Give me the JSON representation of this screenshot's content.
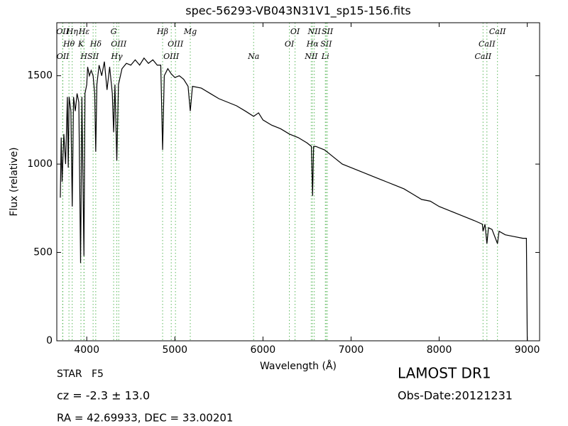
{
  "chart_data": {
    "type": "line",
    "title": "spec-56293-VB043N31V1_sp15-156.fits",
    "x_label": "Wavelength (Å)",
    "y_label": "Flux (relative)",
    "color": "#000000",
    "line_color": "#5cb85c",
    "xlim": [
      3660,
      9140
    ],
    "ylim": [
      0,
      1800
    ],
    "xticks": [
      4000,
      5000,
      6000,
      7000,
      8000,
      9000
    ],
    "yticks": [
      0,
      500,
      1000,
      1500
    ],
    "x": [
      3700,
      3710,
      3720,
      3740,
      3760,
      3780,
      3790,
      3800,
      3820,
      3835,
      3850,
      3870,
      3890,
      3910,
      3930,
      3945,
      3968,
      3980,
      4000,
      4010,
      4030,
      4050,
      4072,
      4090,
      4102,
      4115,
      4140,
      4170,
      4200,
      4230,
      4260,
      4290,
      4305,
      4320,
      4341,
      4360,
      4400,
      4450,
      4500,
      4550,
      4600,
      4650,
      4700,
      4750,
      4800,
      4840,
      4861,
      4880,
      4920,
      4960,
      5000,
      5050,
      5100,
      5150,
      5175,
      5200,
      5300,
      5400,
      5500,
      5600,
      5700,
      5800,
      5894,
      5950,
      6000,
      6100,
      6200,
      6300,
      6400,
      6500,
      6550,
      6563,
      6575,
      6600,
      6700,
      6800,
      6900,
      7000,
      7100,
      7200,
      7300,
      7400,
      7500,
      7600,
      7700,
      7800,
      7900,
      8000,
      8100,
      8200,
      8300,
      8400,
      8490,
      8498,
      8520,
      8542,
      8560,
      8600,
      8662,
      8680,
      8750,
      8850,
      8950,
      8990,
      9000
    ],
    "values": [
      810,
      1150,
      900,
      1170,
      1000,
      1380,
      980,
      1380,
      1300,
      760,
      1380,
      1300,
      1400,
      1350,
      440,
      1380,
      480,
      1400,
      1450,
      1550,
      1500,
      1530,
      1500,
      1400,
      1070,
      1450,
      1560,
      1500,
      1580,
      1420,
      1550,
      1400,
      1180,
      1450,
      1020,
      1450,
      1540,
      1570,
      1560,
      1590,
      1560,
      1600,
      1570,
      1590,
      1560,
      1560,
      1080,
      1500,
      1540,
      1510,
      1490,
      1500,
      1480,
      1440,
      1300,
      1440,
      1430,
      1400,
      1370,
      1350,
      1330,
      1300,
      1270,
      1290,
      1250,
      1220,
      1200,
      1170,
      1150,
      1120,
      1100,
      820,
      1100,
      1100,
      1080,
      1040,
      1000,
      980,
      960,
      940,
      920,
      900,
      880,
      860,
      830,
      800,
      790,
      760,
      740,
      720,
      700,
      680,
      660,
      620,
      660,
      550,
      640,
      630,
      550,
      620,
      600,
      590,
      580,
      580,
      0
    ],
    "spectral_lines": [
      {
        "label": "OII",
        "x": 3726
      },
      {
        "label": "Hθ",
        "x": 3798
      },
      {
        "label": "OII",
        "x": 3729
      },
      {
        "label": "Hη",
        "x": 3835
      },
      {
        "label": "K",
        "x": 3934
      },
      {
        "label": "H",
        "x": 3968
      },
      {
        "label": "Hε",
        "x": 3970
      },
      {
        "label": "Hδ",
        "x": 4102
      },
      {
        "label": "SII",
        "x": 4072
      },
      {
        "label": "G",
        "x": 4305
      },
      {
        "label": "OIII",
        "x": 4363
      },
      {
        "label": "Hγ",
        "x": 4341
      },
      {
        "label": "Hβ",
        "x": 4861
      },
      {
        "label": "OIII",
        "x": 5007
      },
      {
        "label": "OIII",
        "x": 4959
      },
      {
        "label": "Mg",
        "x": 5175
      },
      {
        "label": "OI",
        "x": 6300
      },
      {
        "label": "Na",
        "x": 5894
      },
      {
        "label": "OI",
        "x": 6364
      },
      {
        "label": "Hα",
        "x": 6563
      },
      {
        "label": "NII",
        "x": 6548
      },
      {
        "label": "NII",
        "x": 6583
      },
      {
        "label": "SII",
        "x": 6717
      },
      {
        "label": "Li",
        "x": 6708
      },
      {
        "label": "SII",
        "x": 6731
      },
      {
        "label": "CaII",
        "x": 8542
      },
      {
        "label": "CaII",
        "x": 8498
      },
      {
        "label": "CaII",
        "x": 8662
      }
    ]
  },
  "info": {
    "object_class": "STAR   F5",
    "redshift": "cz = -2.3 ± 13.0",
    "coords": "RA = 42.69933, DEC = 33.00201",
    "survey": "LAMOST DR1",
    "obs_date": "Obs-Date:20121231"
  }
}
